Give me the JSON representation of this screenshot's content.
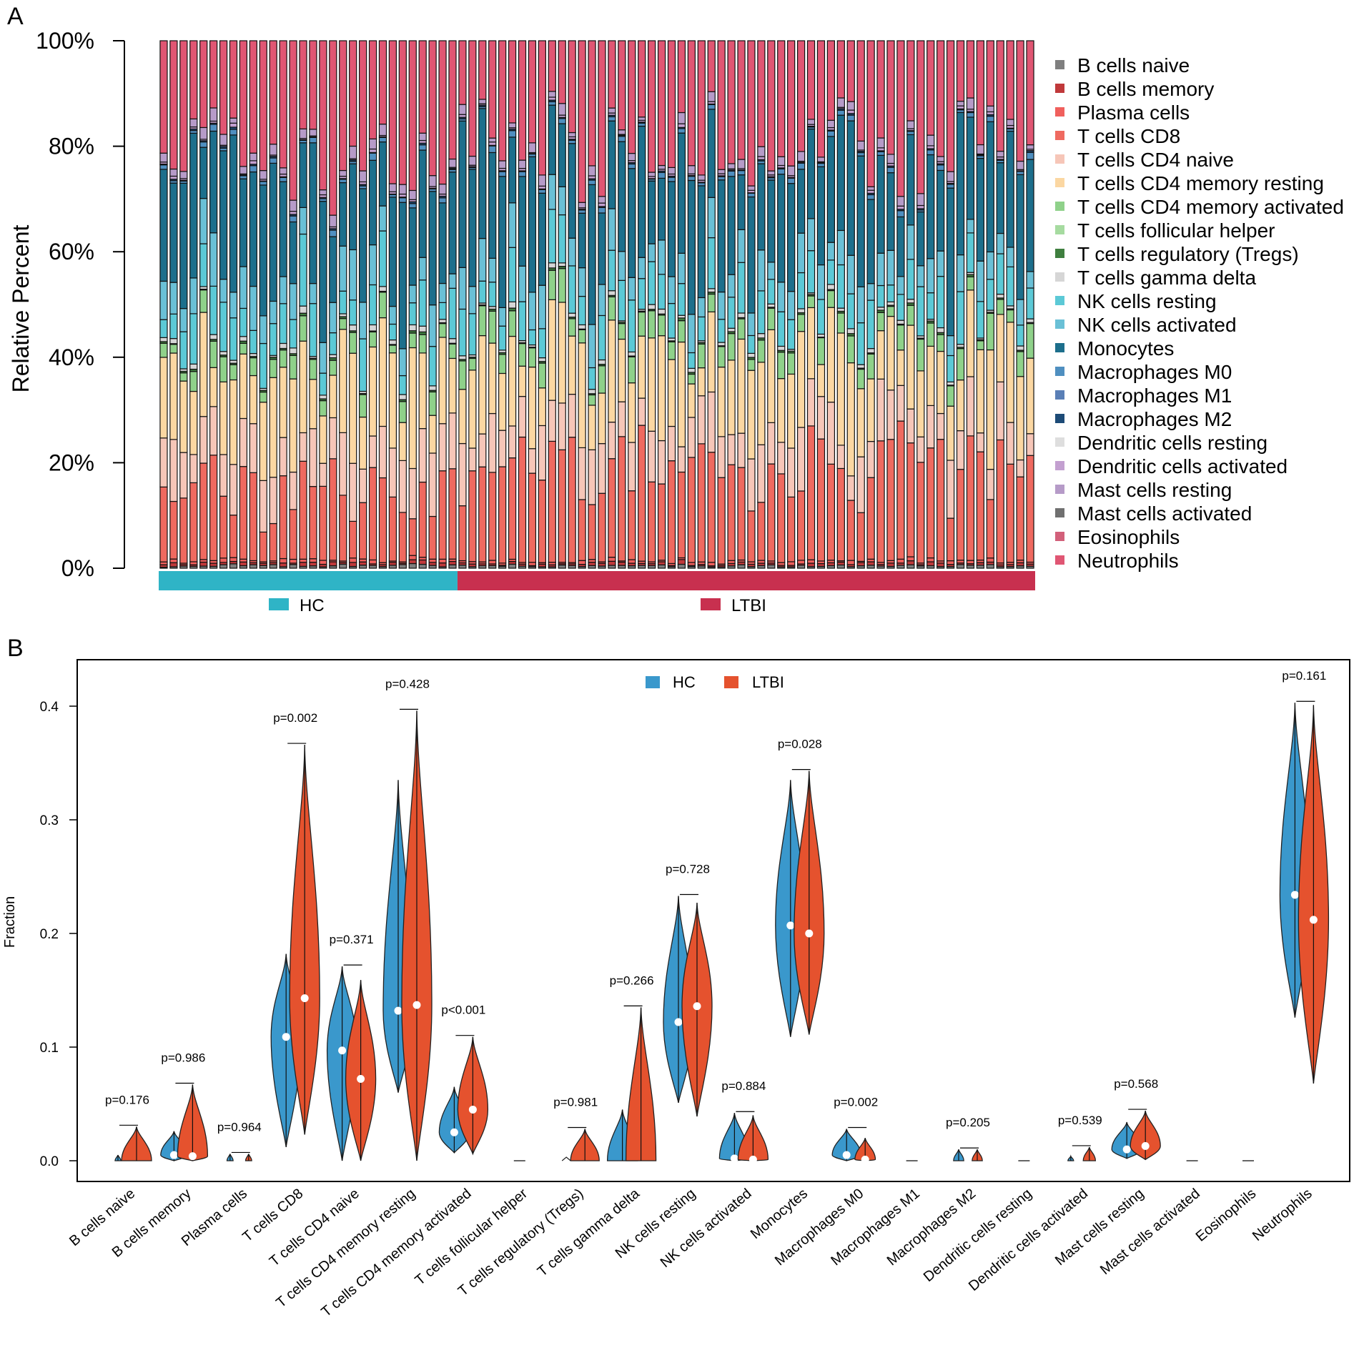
{
  "panel_a": {
    "label": "A",
    "chart_data": {
      "type": "bar",
      "stacked": true,
      "ylabel": "Relative Percent",
      "y_ticks": [
        "0%",
        "20%",
        "40%",
        "60%",
        "80%",
        "100%"
      ],
      "ylim": [
        0,
        100
      ],
      "n_samples": 88,
      "groups": [
        {
          "name": "HC",
          "count": 30,
          "color": "#2fb4c6"
        },
        {
          "name": "LTBI",
          "count": 58,
          "color": "#c8304f"
        }
      ],
      "legend": [
        {
          "name": "B cells naive",
          "color": "#7f7f7f"
        },
        {
          "name": "B cells memory",
          "color": "#c0393b"
        },
        {
          "name": "Plasma cells",
          "color": "#f0605d"
        },
        {
          "name": "T cells CD8",
          "color": "#ef6a60"
        },
        {
          "name": "T cells CD4 naive",
          "color": "#f6c6b8"
        },
        {
          "name": "T cells CD4 memory resting",
          "color": "#fbd7a2"
        },
        {
          "name": "T cells CD4 memory activated",
          "color": "#8fd18a"
        },
        {
          "name": "T cells follicular helper",
          "color": "#a6dba0"
        },
        {
          "name": "T cells regulatory (Tregs)",
          "color": "#3f7f3f"
        },
        {
          "name": "T cells gamma delta",
          "color": "#d6d6d6"
        },
        {
          "name": "NK cells resting",
          "color": "#5cc9d6"
        },
        {
          "name": "NK cells activated",
          "color": "#6ac0d6"
        },
        {
          "name": "Monocytes",
          "color": "#1d6f8c"
        },
        {
          "name": "Macrophages M0",
          "color": "#4f8fc0"
        },
        {
          "name": "Macrophages M1",
          "color": "#5a7fb6"
        },
        {
          "name": "Macrophages M2",
          "color": "#1d4b77"
        },
        {
          "name": "Dendritic cells resting",
          "color": "#dedede"
        },
        {
          "name": "Dendritic cells activated",
          "color": "#c3a0d0"
        },
        {
          "name": "Mast cells resting",
          "color": "#b69bc8"
        },
        {
          "name": "Mast cells activated",
          "color": "#707070"
        },
        {
          "name": "Eosinophils",
          "color": "#d2607a"
        },
        {
          "name": "Neutrophils",
          "color": "#e05673"
        }
      ],
      "mean_composition_percent": {
        "B cells naive": 0.5,
        "B cells memory": 0.5,
        "Plasma cells": 0.5,
        "T cells CD8": 14,
        "T cells CD4 naive": 8,
        "T cells CD4 memory resting": 14,
        "T cells CD4 memory activated": 3,
        "T cells follicular helper": 0,
        "T cells regulatory (Tregs)": 0.3,
        "T cells gamma delta": 0.7,
        "NK cells resting": 7,
        "NK cells activated": 6,
        "Monocytes": 21,
        "Macrophages M0": 0.8,
        "Macrophages M1": 0,
        "Macrophages M2": 0.2,
        "Dendritic cells resting": 0,
        "Dendritic cells activated": 0.4,
        "Mast cells resting": 1.5,
        "Mast cells activated": 0,
        "Eosinophils": 0,
        "Neutrophils": 21.6
      }
    }
  },
  "panel_b": {
    "label": "B",
    "chart_data": {
      "type": "violin",
      "ylabel": "Fraction",
      "ylim": [
        0,
        0.42
      ],
      "y_ticks": [
        "0.0",
        "0.1",
        "0.2",
        "0.3",
        "0.4"
      ],
      "y_tick_values": [
        0,
        0.1,
        0.2,
        0.3,
        0.4
      ],
      "legend": [
        {
          "name": "HC",
          "color": "#3a98cc"
        },
        {
          "name": "LTBI",
          "color": "#e5522e"
        }
      ],
      "categories": [
        {
          "name": "B cells naive",
          "p": "p=0.176",
          "hc": {
            "min": 0,
            "max": 0.005,
            "median": 0
          },
          "ltbi": {
            "min": 0,
            "max": 0.03,
            "median": 0
          }
        },
        {
          "name": "B cells memory",
          "p": "p=0.986",
          "hc": {
            "min": 0,
            "max": 0.026,
            "median": 0.005
          },
          "ltbi": {
            "min": 0,
            "max": 0.067,
            "median": 0.004
          }
        },
        {
          "name": "Plasma cells",
          "p": "p=0.964",
          "hc": {
            "min": 0,
            "max": 0.006,
            "median": 0
          },
          "ltbi": {
            "min": 0,
            "max": 0.006,
            "median": 0
          }
        },
        {
          "name": "T cells CD8",
          "p": "p=0.002",
          "hc": {
            "min": 0.012,
            "max": 0.182,
            "median": 0.109
          },
          "ltbi": {
            "min": 0.023,
            "max": 0.366,
            "median": 0.143
          }
        },
        {
          "name": "T cells CD4 naive",
          "p": "p=0.371",
          "hc": {
            "min": 0,
            "max": 0.171,
            "median": 0.097
          },
          "ltbi": {
            "min": 0,
            "max": 0.159,
            "median": 0.072
          }
        },
        {
          "name": "T cells CD4 memory resting",
          "p": "p=0.428",
          "hc": {
            "min": 0.06,
            "max": 0.335,
            "median": 0.132
          },
          "ltbi": {
            "min": 0,
            "max": 0.396,
            "median": 0.137
          }
        },
        {
          "name": "T cells CD4 memory activated",
          "p": "p<0.001",
          "hc": {
            "min": 0.007,
            "max": 0.065,
            "median": 0.025
          },
          "ltbi": {
            "min": 0.006,
            "max": 0.109,
            "median": 0.045
          }
        },
        {
          "name": "T cells follicular helper",
          "p": "",
          "hc": {
            "min": 0,
            "max": 0,
            "median": 0
          },
          "ltbi": {
            "min": 0,
            "max": 0,
            "median": 0
          }
        },
        {
          "name": "T cells regulatory (Tregs)",
          "p": "p=0.981",
          "hc": {
            "min": 0,
            "max": 0.001,
            "median": 0
          },
          "ltbi": {
            "min": 0,
            "max": 0.028,
            "median": 0
          }
        },
        {
          "name": "T cells gamma delta",
          "p": "p=0.266",
          "hc": {
            "min": 0,
            "max": 0.045,
            "median": 0
          },
          "ltbi": {
            "min": 0,
            "max": 0.135,
            "median": 0
          }
        },
        {
          "name": "NK cells resting",
          "p": "p=0.728",
          "hc": {
            "min": 0.051,
            "max": 0.233,
            "median": 0.122
          },
          "ltbi": {
            "min": 0.039,
            "max": 0.227,
            "median": 0.136
          }
        },
        {
          "name": "NK cells activated",
          "p": "p=0.884",
          "hc": {
            "min": 0,
            "max": 0.042,
            "median": 0.002
          },
          "ltbi": {
            "min": 0,
            "max": 0.04,
            "median": 0.001
          }
        },
        {
          "name": "Monocytes",
          "p": "p=0.028",
          "hc": {
            "min": 0.109,
            "max": 0.335,
            "median": 0.207
          },
          "ltbi": {
            "min": 0.111,
            "max": 0.343,
            "median": 0.2
          }
        },
        {
          "name": "Macrophages M0",
          "p": "p=0.002",
          "hc": {
            "min": 0,
            "max": 0.028,
            "median": 0.005
          },
          "ltbi": {
            "min": 0,
            "max": 0.02,
            "median": 0.001
          }
        },
        {
          "name": "Macrophages M1",
          "p": "",
          "hc": {
            "min": 0,
            "max": 0,
            "median": 0
          },
          "ltbi": {
            "min": 0,
            "max": 0,
            "median": 0
          }
        },
        {
          "name": "Macrophages M2",
          "p": "p=0.205",
          "hc": {
            "min": 0,
            "max": 0.01,
            "median": 0
          },
          "ltbi": {
            "min": 0,
            "max": 0.01,
            "median": 0
          }
        },
        {
          "name": "Dendritic cells resting",
          "p": "",
          "hc": {
            "min": 0,
            "max": 0,
            "median": 0
          },
          "ltbi": {
            "min": 0,
            "max": 0,
            "median": 0
          }
        },
        {
          "name": "Dendritic cells activated",
          "p": "p=0.539",
          "hc": {
            "min": 0,
            "max": 0.004,
            "median": 0
          },
          "ltbi": {
            "min": 0,
            "max": 0.012,
            "median": 0
          }
        },
        {
          "name": "Mast cells resting",
          "p": "p=0.568",
          "hc": {
            "min": 0.002,
            "max": 0.034,
            "median": 0.01
          },
          "ltbi": {
            "min": 0.001,
            "max": 0.044,
            "median": 0.013
          }
        },
        {
          "name": "Mast cells activated",
          "p": "",
          "hc": {
            "min": 0,
            "max": 0,
            "median": 0
          },
          "ltbi": {
            "min": 0,
            "max": 0,
            "median": 0
          }
        },
        {
          "name": "Eosinophils",
          "p": "",
          "hc": {
            "min": 0,
            "max": 0,
            "median": 0
          },
          "ltbi": {
            "min": 0,
            "max": 0,
            "median": 0
          }
        },
        {
          "name": "Neutrophils",
          "p": "p=0.161",
          "hc": {
            "min": 0.126,
            "max": 0.403,
            "median": 0.234
          },
          "ltbi": {
            "min": 0.068,
            "max": 0.401,
            "median": 0.212
          }
        }
      ]
    }
  }
}
